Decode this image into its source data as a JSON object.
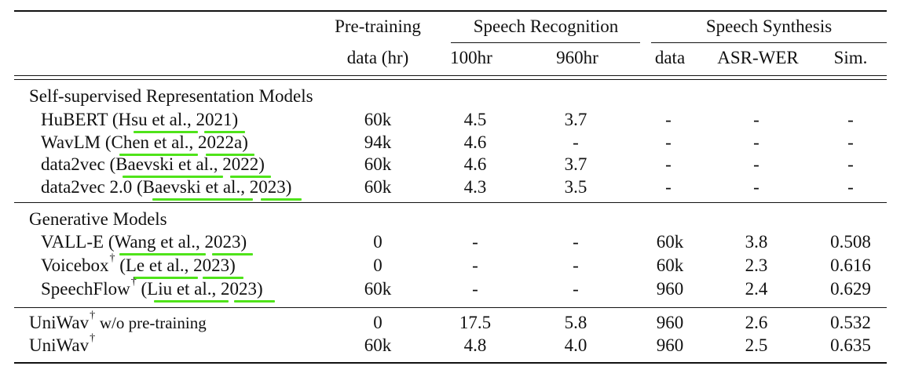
{
  "header": {
    "pretraining_line1": "Pre-training",
    "pretraining_line2": "data (hr)",
    "recognition": "Speech Recognition",
    "synthesis": "Speech Synthesis",
    "sub_100hr": "100hr",
    "sub_960hr": "960hr",
    "sub_data": "data",
    "sub_asr_wer": "ASR-WER",
    "sub_sim": "Sim."
  },
  "sections": {
    "ssl": "Self-supervised Representation Models",
    "gen": "Generative Models"
  },
  "dagger": "†",
  "rows": [
    {
      "model": "HuBERT",
      "cite_a": "Hsu et al.,",
      "cite_b": "2021",
      "pre": "60k",
      "r100": "4.5",
      "r960": "3.7",
      "data": "-",
      "wer": "-",
      "sim": "-"
    },
    {
      "model": "WavLM",
      "cite_a": "Chen et al.,",
      "cite_b": "2022a",
      "pre": "94k",
      "r100": "4.6",
      "r960": "-",
      "data": "-",
      "wer": "-",
      "sim": "-"
    },
    {
      "model": "data2vec",
      "cite_a": "Baevski et al.,",
      "cite_b": "2022",
      "pre": "60k",
      "r100": "4.6",
      "r960": "3.7",
      "data": "-",
      "wer": "-",
      "sim": "-"
    },
    {
      "model": "data2vec 2.0",
      "cite_a": "Baevski et al.,",
      "cite_b": "2023",
      "pre": "60k",
      "r100": "4.3",
      "r960": "3.5",
      "data": "-",
      "wer": "-",
      "sim": "-"
    },
    {
      "model": "VALL-E",
      "cite_a": "Wang et al.,",
      "cite_b": "2023",
      "pre": "0",
      "r100": "-",
      "r960": "-",
      "data": "60k",
      "wer": "3.8",
      "sim": "0.508"
    },
    {
      "model": "Voicebox",
      "cite_a": "Le et al.,",
      "cite_b": "2023",
      "pre": "0",
      "r100": "-",
      "r960": "-",
      "data": "60k",
      "wer": "2.3",
      "sim": "0.616"
    },
    {
      "model": "SpeechFlow",
      "cite_a": "Liu et al.,",
      "cite_b": "2023",
      "pre": "60k",
      "r100": "-",
      "r960": "-",
      "data": "960",
      "wer": "2.4",
      "sim": "0.629"
    },
    {
      "model": "UniWav",
      "suffix": "w/o pre-training",
      "pre": "0",
      "r100": "17.5",
      "r960": "5.8",
      "data": "960",
      "wer": "2.6",
      "sim": "0.532"
    },
    {
      "model": "UniWav",
      "pre": "60k",
      "r100": "4.8",
      "r960": "4.0",
      "data": "960",
      "wer": "2.5",
      "sim": "0.635"
    }
  ]
}
